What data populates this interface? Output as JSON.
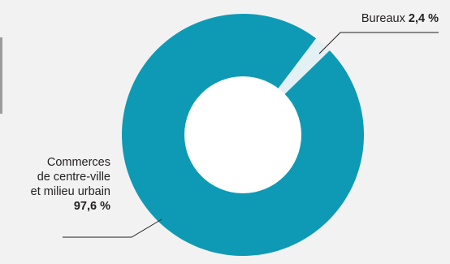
{
  "chart_data": {
    "type": "pie",
    "donut": true,
    "slices": [
      {
        "label": "Bureaux",
        "value": 2.4,
        "value_label": "2,4 %",
        "color": "#e3f1f5"
      },
      {
        "label": "Commerces de centre-ville et milieu urbain",
        "value": 97.6,
        "value_label": "97,6 %",
        "color": "#0e9ab5"
      }
    ],
    "label_lines": {
      "commerces": [
        "Commerces",
        "de centre-ville",
        "et milieu urbain"
      ]
    },
    "title": "",
    "legend": "none"
  },
  "colors": {
    "background": "#f2f2f2",
    "hole": "#ffffff",
    "leader": "#231f20"
  }
}
